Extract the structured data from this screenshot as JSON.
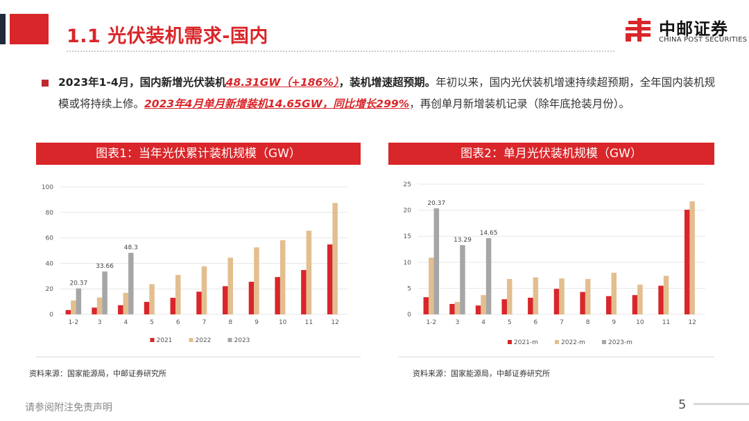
{
  "header": {
    "title": "1.1 光伏装机需求-国内",
    "logo_cn": "中邮证券",
    "logo_en": "CHINA POST SECURITIES"
  },
  "summary": {
    "p1": "2023年1-4月，国内新增光伏装机",
    "p2": "48.31GW（+186%）",
    "p3": "，装机增速超预期。",
    "p4": "年初以来，国内光伏装机增速持续超预期，全年国内装机规模或将持续上修。",
    "p5": "2023年4月单月新增装机14.65GW，同比增长299%",
    "p6": "，再创单月新增装机记录（除年底抢装月份）。"
  },
  "chart1": {
    "header": "图表1：当年光伏累计装机规模（GW）",
    "source": "资料来源：国家能源局，中邮证券研究所"
  },
  "chart2": {
    "header": "图表2：单月光伏装机规模（GW）",
    "source": "资料来源：国家能源局，中邮证券研究所"
  },
  "footer": {
    "disclaimer": "请参阅附注免责声明",
    "page": "5"
  },
  "colors": {
    "red": "#d9262a",
    "tan": "#e3be8f",
    "gray": "#a6a6a6"
  },
  "chart_data": [
    {
      "type": "bar",
      "title": "图表1：当年光伏累计装机规模（GW）",
      "categories": [
        "1-2",
        "3",
        "4",
        "5",
        "6",
        "7",
        "8",
        "9",
        "10",
        "11",
        "12"
      ],
      "ylim": [
        0,
        100
      ],
      "yticks": [
        0,
        20,
        40,
        60,
        80,
        100
      ],
      "series": [
        {
          "name": "2021",
          "color": "#d9262a",
          "values": [
            3.4,
            5.3,
            7.2,
            9.8,
            13.0,
            17.8,
            22.1,
            25.6,
            29.3,
            34.8,
            54.9
          ]
        },
        {
          "name": "2022",
          "color": "#e3be8f",
          "values": [
            10.9,
            13.2,
            16.9,
            23.7,
            30.9,
            37.7,
            44.5,
            52.6,
            58.2,
            65.7,
            87.4
          ]
        },
        {
          "name": "2023",
          "color": "#a6a6a6",
          "values": [
            20.37,
            33.66,
            48.3,
            null,
            null,
            null,
            null,
            null,
            null,
            null,
            null
          ]
        }
      ],
      "data_labels": [
        {
          "series": 2,
          "index": 0,
          "text": "20.37"
        },
        {
          "series": 2,
          "index": 1,
          "text": "33.66"
        },
        {
          "series": 2,
          "index": 2,
          "text": "48.3"
        }
      ],
      "legend_position": "bottom"
    },
    {
      "type": "bar",
      "title": "图表2：单月光伏装机规模（GW）",
      "categories": [
        "1-2",
        "3",
        "4",
        "5",
        "6",
        "7",
        "8",
        "9",
        "10",
        "11",
        "12"
      ],
      "ylim": [
        0,
        25
      ],
      "yticks": [
        0,
        5,
        10,
        15,
        20,
        25
      ],
      "series": [
        {
          "name": "2021-m",
          "color": "#d9262a",
          "values": [
            3.3,
            2.0,
            1.7,
            2.9,
            3.2,
            4.9,
            4.3,
            3.5,
            3.7,
            5.5,
            20.1
          ]
        },
        {
          "name": "2022-m",
          "color": "#e3be8f",
          "values": [
            10.9,
            2.4,
            3.7,
            6.8,
            7.1,
            6.9,
            6.8,
            8.0,
            5.7,
            7.4,
            21.7
          ]
        },
        {
          "name": "2023-m",
          "color": "#a6a6a6",
          "values": [
            20.37,
            13.29,
            14.65,
            null,
            null,
            null,
            null,
            null,
            null,
            null,
            null
          ]
        }
      ],
      "data_labels": [
        {
          "series": 2,
          "index": 0,
          "text": "20.37"
        },
        {
          "series": 2,
          "index": 1,
          "text": "13.29"
        },
        {
          "series": 2,
          "index": 2,
          "text": "14.65"
        }
      ],
      "legend_position": "bottom"
    }
  ]
}
